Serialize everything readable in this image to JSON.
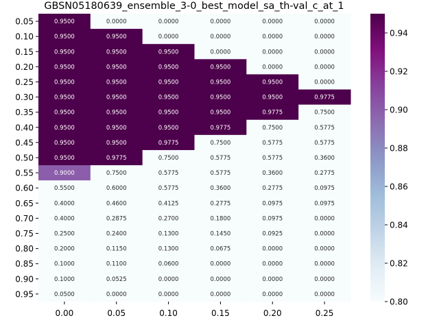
{
  "chart_data": {
    "type": "heatmap",
    "title": "GBSN05180639_ensemble_3-0_best_model_sa_th-val_c_at_1",
    "xlabel": "",
    "ylabel": "",
    "x_labels": [
      "0.00",
      "0.05",
      "0.10",
      "0.15",
      "0.20",
      "0.25"
    ],
    "y_labels": [
      "0.05",
      "0.10",
      "0.15",
      "0.20",
      "0.25",
      "0.30",
      "0.35",
      "0.40",
      "0.45",
      "0.50",
      "0.55",
      "0.60",
      "0.65",
      "0.70",
      "0.75",
      "0.80",
      "0.85",
      "0.90",
      "0.95"
    ],
    "values": [
      [
        0.95,
        0.0,
        0.0,
        0.0,
        0.0,
        0.0
      ],
      [
        0.95,
        0.95,
        0.0,
        0.0,
        0.0,
        0.0
      ],
      [
        0.95,
        0.95,
        0.95,
        0.0,
        0.0,
        0.0
      ],
      [
        0.95,
        0.95,
        0.95,
        0.95,
        0.0,
        0.0
      ],
      [
        0.95,
        0.95,
        0.95,
        0.95,
        0.95,
        0.0
      ],
      [
        0.95,
        0.95,
        0.95,
        0.95,
        0.95,
        0.9775
      ],
      [
        0.95,
        0.95,
        0.95,
        0.95,
        0.9775,
        0.75
      ],
      [
        0.95,
        0.95,
        0.95,
        0.9775,
        0.75,
        0.5775
      ],
      [
        0.95,
        0.95,
        0.9775,
        0.75,
        0.5775,
        0.5775
      ],
      [
        0.95,
        0.9775,
        0.75,
        0.5775,
        0.5775,
        0.36
      ],
      [
        0.9,
        0.75,
        0.5775,
        0.5775,
        0.36,
        0.2775
      ],
      [
        0.55,
        0.6,
        0.5775,
        0.36,
        0.2775,
        0.0975
      ],
      [
        0.4,
        0.46,
        0.4125,
        0.2775,
        0.0975,
        0.0975
      ],
      [
        0.4,
        0.2875,
        0.27,
        0.18,
        0.0975,
        0.0
      ],
      [
        0.25,
        0.24,
        0.13,
        0.145,
        0.0925,
        0.0
      ],
      [
        0.2,
        0.115,
        0.13,
        0.0675,
        0.0,
        0.0
      ],
      [
        0.1,
        0.11,
        0.06,
        0.0,
        0.0,
        0.0
      ],
      [
        0.1,
        0.0525,
        0.0,
        0.0,
        0.0,
        0.0
      ],
      [
        0.05,
        0.0,
        0.0,
        0.0,
        0.0,
        0.0
      ]
    ],
    "color_range": [
      0.8,
      0.95
    ],
    "colormap": "BuPu",
    "colorbar_ticks": [
      "0.80",
      "0.82",
      "0.84",
      "0.86",
      "0.88",
      "0.90",
      "0.92",
      "0.94"
    ],
    "colorbar_tick_values": [
      0.8,
      0.82,
      0.84,
      0.86,
      0.88,
      0.9,
      0.92,
      0.94
    ],
    "colors": {
      "low": "#f7fcfd",
      "high": "#4d004b",
      "text_dark": "#262626",
      "text_light": "#ffffff"
    }
  }
}
